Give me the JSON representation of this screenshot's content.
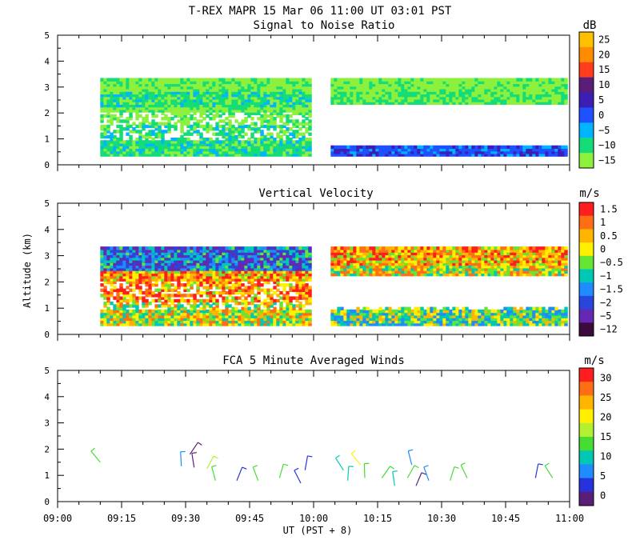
{
  "header": {
    "title": "T-REX   MAPR 15 Mar 06   11:00 UT   03:01  PST"
  },
  "xaxis": {
    "label": "UT  (PST + 8)",
    "ticks": [
      "09:00",
      "09:15",
      "09:30",
      "09:45",
      "10:00",
      "10:15",
      "10:30",
      "10:45",
      "11:00"
    ]
  },
  "yaxis_label": "Altitude (km)",
  "panels": [
    {
      "title": "Signal to Noise Ratio",
      "unit": "dB",
      "yticks": [
        "0",
        "1",
        "2",
        "3",
        "4",
        "5"
      ],
      "colorbar": {
        "labels": [
          "25",
          "20",
          "15",
          "10",
          "5",
          "0",
          "−5",
          "−10",
          "−15"
        ],
        "colors": [
          "#ffc000",
          "#ff8c00",
          "#ff3c1e",
          "#5a1e78",
          "#3c1eb4",
          "#1e50ff",
          "#00b4ff",
          "#14dc78",
          "#8cf03c"
        ]
      }
    },
    {
      "title": "Vertical Velocity",
      "unit": "m/s",
      "yticks": [
        "0",
        "1",
        "2",
        "3",
        "4",
        "5"
      ],
      "colorbar": {
        "labels": [
          "1.5",
          "1",
          "0.5",
          "0",
          "−0.5",
          "−1",
          "−1.5",
          "−2",
          "−5",
          "−12"
        ],
        "colors": [
          "#ff1e1e",
          "#ff6e14",
          "#ffb400",
          "#fff000",
          "#64e632",
          "#00c8b4",
          "#1e8cff",
          "#2846dc",
          "#6428b4",
          "#3c0a3c"
        ]
      }
    },
    {
      "title": "FCA 5 Minute Averaged Winds",
      "unit": "m/s",
      "yticks": [
        "0",
        "1",
        "2",
        "3",
        "4",
        "5"
      ],
      "colorbar": {
        "labels": [
          "30",
          "25",
          "20",
          "15",
          "10",
          "5",
          "0"
        ],
        "colors": [
          "#ff1e1e",
          "#ff6e14",
          "#ffb400",
          "#fff000",
          "#b4f032",
          "#46dc32",
          "#00c8b4",
          "#1e8cff",
          "#2832dc",
          "#5a1e78"
        ]
      }
    }
  ],
  "chart_data": [
    {
      "type": "heatmap",
      "title": "Signal to Noise Ratio",
      "ylabel": "Altitude (km)",
      "ylim": [
        0,
        5
      ],
      "xlim": [
        "09:00",
        "11:00"
      ],
      "colorbar_unit": "dB",
      "data_gaps_ut": [
        [
          "09:59",
          "10:04"
        ]
      ],
      "segments": [
        {
          "x_start": "09:10",
          "x_end": "09:59",
          "alt_bottom_km": 0.35,
          "alt_top_km": 3.3,
          "bands": [
            {
              "alt_km": [
                2.8,
                3.3
              ],
              "dB": -12
            },
            {
              "alt_km": [
                2.2,
                2.8
              ],
              "dB": -8
            },
            {
              "alt_km": [
                1.5,
                2.2
              ],
              "dB": -12
            },
            {
              "alt_km": [
                0.35,
                1.5
              ],
              "dB": -8
            }
          ]
        },
        {
          "x_start": "10:04",
          "x_end": "10:59",
          "alt_bottom_km": 0.35,
          "alt_top_km": 3.3,
          "bands": [
            {
              "alt_km": [
                2.8,
                3.3
              ],
              "dB": -13
            },
            {
              "alt_km": [
                2.3,
                2.8
              ],
              "dB": -10
            },
            {
              "alt_km": [
                0.35,
                0.7
              ],
              "dB": 3
            }
          ]
        }
      ]
    },
    {
      "type": "heatmap",
      "title": "Vertical Velocity",
      "ylabel": "Altitude (km)",
      "ylim": [
        0,
        5
      ],
      "xlim": [
        "09:00",
        "11:00"
      ],
      "colorbar_unit": "m/s",
      "data_gaps_ut": [
        [
          "09:59",
          "10:04"
        ]
      ],
      "segments": [
        {
          "x_start": "09:10",
          "x_end": "09:59",
          "alt_bottom_km": 0.35,
          "alt_top_km": 3.3,
          "bands": [
            {
              "alt_km": [
                2.4,
                3.3
              ],
              "w": -1.5
            },
            {
              "alt_km": [
                1.2,
                2.4
              ],
              "w": 1.0
            },
            {
              "alt_km": [
                0.35,
                1.2
              ],
              "w": 0.2
            }
          ]
        },
        {
          "x_start": "10:04",
          "x_end": "10:59",
          "alt_bottom_km": 0.35,
          "alt_top_km": 3.3,
          "bands": [
            {
              "alt_km": [
                2.6,
                3.3
              ],
              "w": 0.8
            },
            {
              "alt_km": [
                2.2,
                2.6
              ],
              "w": 0.3
            },
            {
              "alt_km": [
                0.35,
                1.0
              ],
              "w": -0.3
            }
          ]
        }
      ]
    },
    {
      "type": "scatter",
      "title": "FCA 5 Minute Averaged Winds",
      "ylabel": "Altitude (km)",
      "ylim": [
        0,
        5
      ],
      "xlim": [
        "09:00",
        "11:00"
      ],
      "colorbar_unit": "m/s",
      "barbs": [
        {
          "t": "09:10",
          "alt": 1.5,
          "speed": 14
        },
        {
          "t": "09:29",
          "alt": 1.35,
          "speed": 9
        },
        {
          "t": "09:31",
          "alt": 1.8,
          "speed": 2
        },
        {
          "t": "09:32",
          "alt": 1.3,
          "speed": 3
        },
        {
          "t": "09:35",
          "alt": 1.25,
          "speed": 16
        },
        {
          "t": "09:37",
          "alt": 0.8,
          "speed": 14
        },
        {
          "t": "09:42",
          "alt": 0.8,
          "speed": 5
        },
        {
          "t": "09:47",
          "alt": 0.8,
          "speed": 13
        },
        {
          "t": "09:52",
          "alt": 0.9,
          "speed": 13
        },
        {
          "t": "09:57",
          "alt": 0.7,
          "speed": 5
        },
        {
          "t": "09:58",
          "alt": 1.2,
          "speed": 4
        },
        {
          "t": "10:07",
          "alt": 1.2,
          "speed": 10
        },
        {
          "t": "10:08",
          "alt": 0.8,
          "speed": 10
        },
        {
          "t": "10:11",
          "alt": 1.4,
          "speed": 20
        },
        {
          "t": "10:12",
          "alt": 0.9,
          "speed": 13
        },
        {
          "t": "10:16",
          "alt": 0.9,
          "speed": 13
        },
        {
          "t": "10:19",
          "alt": 0.6,
          "speed": 12
        },
        {
          "t": "10:22",
          "alt": 0.9,
          "speed": 15
        },
        {
          "t": "10:23",
          "alt": 1.4,
          "speed": 9
        },
        {
          "t": "10:24",
          "alt": 0.6,
          "speed": 3
        },
        {
          "t": "10:27",
          "alt": 0.8,
          "speed": 9
        },
        {
          "t": "10:32",
          "alt": 0.8,
          "speed": 13
        },
        {
          "t": "10:36",
          "alt": 0.9,
          "speed": 14
        },
        {
          "t": "10:52",
          "alt": 0.9,
          "speed": 4
        },
        {
          "t": "10:56",
          "alt": 0.9,
          "speed": 14
        }
      ]
    }
  ]
}
